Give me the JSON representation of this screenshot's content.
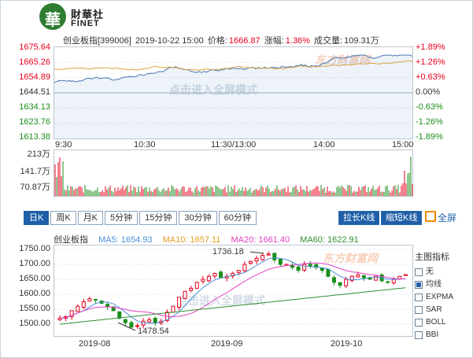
{
  "logo": {
    "mark": "華",
    "brand_cn": "財華社",
    "brand_en": "FINET"
  },
  "quote": {
    "name": "创业板指[399006]",
    "datetime": "2019-10-22 15:00",
    "price_label": "价格:",
    "price": "1666.87",
    "change_label": "涨幅:",
    "change": "1.36%",
    "volume_label": "成交量:",
    "volume": "109.31万"
  },
  "intraday": {
    "y_labels": [
      "1675.64",
      "1665.26",
      "1654.89",
      "1644.51",
      "1634.13",
      "1623.76",
      "1613.38"
    ],
    "pct_labels": [
      "+1.89%",
      "+1.26%",
      "+0.63%",
      "0.00%",
      "-0.63%",
      "-1.26%",
      "-1.89%"
    ],
    "time_labels": [
      "9:30",
      "10:30",
      "11:30/13:00",
      "14:00",
      "15:00"
    ],
    "vol_labels": [
      "213万",
      "141.7万",
      "70.87万"
    ],
    "watermark": "点击进入全屏模式",
    "wm_logo": "东方财富网"
  },
  "tabs": [
    {
      "label": "日K",
      "active": true
    },
    {
      "label": "周K",
      "active": false
    },
    {
      "label": "月K",
      "active": false
    },
    {
      "label": "5分钟",
      "active": false
    },
    {
      "label": "15分钟",
      "active": false
    },
    {
      "label": "30分钟",
      "active": false
    },
    {
      "label": "60分钟",
      "active": false
    }
  ],
  "buttons": {
    "zoom_in": "拉长K线",
    "zoom_out": "缩短K线",
    "fullscreen": "全屏"
  },
  "ma": {
    "name": "创业板指",
    "ma5": "MA5: 1654.93",
    "ma10": "MA10: 1657.11",
    "ma20": "MA20: 1661.40",
    "ma60": "MA60: 1622.91",
    "colors": {
      "ma5": "#4a90d9",
      "ma10": "#e0a020",
      "ma20": "#e040c0",
      "ma60": "#2f8f2f"
    }
  },
  "kline": {
    "y_labels": [
      "1750.00",
      "1700.00",
      "1650.00",
      "1600.00",
      "1550.00",
      "1500.00"
    ],
    "high_label": "1736.18",
    "low_label": "1478.54",
    "date_labels": [
      "2019-08",
      "2019-09",
      "2019-10"
    ],
    "watermark": "点击进入全屏模式",
    "wm_logo": "东方财富网"
  },
  "indicators": {
    "title": "主图指标",
    "items": [
      {
        "label": "无",
        "checked": false
      },
      {
        "label": "均线",
        "checked": true
      },
      {
        "label": "EXPMA",
        "checked": false
      },
      {
        "label": "SAR",
        "checked": false
      },
      {
        "label": "BOLL",
        "checked": false
      },
      {
        "label": "BBI",
        "checked": false
      }
    ]
  },
  "colors": {
    "up": "#e8001c",
    "down": "#1b8f1b",
    "accent": "#1f5fa8",
    "price_line": "#4a77b4",
    "avg_line": "#d9a441"
  }
}
